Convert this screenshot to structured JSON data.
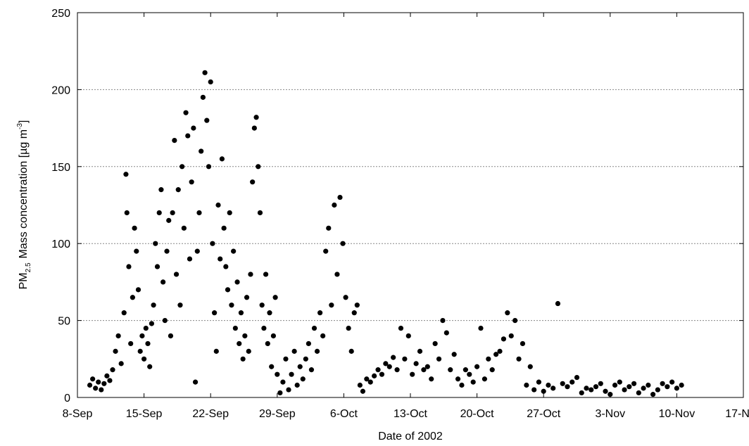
{
  "chart_data": {
    "type": "scatter",
    "xlabel": "Date of 2002",
    "ylabel": {
      "main": "PM",
      "sub": "2.5",
      "text": "Mass concentration [µg m",
      "sup": "-3",
      "end": "]"
    },
    "xlim": [
      0,
      70
    ],
    "xticks": [
      {
        "value": 0,
        "label": "8-Sep"
      },
      {
        "value": 7,
        "label": "15-Sep"
      },
      {
        "value": 14,
        "label": "22-Sep"
      },
      {
        "value": 21,
        "label": "29-Sep"
      },
      {
        "value": 28,
        "label": "6-Oct"
      },
      {
        "value": 35,
        "label": "13-Oct"
      },
      {
        "value": 42,
        "label": "20-Oct"
      },
      {
        "value": 49,
        "label": "27-Oct"
      },
      {
        "value": 56,
        "label": "3-Nov"
      },
      {
        "value": 63,
        "label": "10-Nov"
      },
      {
        "value": 70,
        "label": "17-Nov"
      }
    ],
    "ylim": [
      0,
      250
    ],
    "yticks": [
      0,
      50,
      100,
      150,
      200,
      250
    ],
    "grid": true,
    "color": "#000000",
    "x": [
      1.3,
      1.6,
      1.9,
      2.2,
      2.5,
      2.8,
      3.1,
      3.4,
      3.7,
      4.0,
      4.3,
      4.6,
      4.9,
      5.1,
      5.2,
      5.4,
      5.6,
      5.8,
      6.0,
      6.2,
      6.4,
      6.6,
      6.8,
      7.0,
      7.2,
      7.4,
      7.6,
      7.8,
      8.0,
      8.2,
      8.4,
      8.6,
      8.8,
      9.0,
      9.2,
      9.4,
      9.6,
      9.8,
      10.0,
      10.2,
      10.4,
      10.6,
      10.8,
      11.0,
      11.2,
      11.4,
      11.6,
      11.8,
      12.0,
      12.2,
      12.4,
      12.6,
      12.8,
      13.0,
      13.2,
      13.4,
      13.6,
      13.8,
      14.0,
      14.2,
      14.4,
      14.6,
      14.8,
      15.0,
      15.2,
      15.4,
      15.6,
      15.8,
      16.0,
      16.2,
      16.4,
      16.6,
      16.8,
      17.0,
      17.2,
      17.4,
      17.6,
      17.8,
      18.0,
      18.2,
      18.4,
      18.6,
      18.8,
      19.0,
      19.2,
      19.4,
      19.6,
      19.8,
      20.0,
      20.2,
      20.4,
      20.6,
      20.8,
      21.0,
      21.3,
      21.6,
      21.9,
      22.2,
      22.5,
      22.8,
      23.1,
      23.4,
      23.7,
      24.0,
      24.3,
      24.6,
      24.9,
      25.2,
      25.5,
      25.8,
      26.1,
      26.4,
      26.7,
      27.0,
      27.3,
      27.6,
      27.9,
      28.2,
      28.5,
      28.8,
      29.1,
      29.4,
      29.7,
      30.0,
      30.4,
      30.8,
      31.2,
      31.6,
      32.0,
      32.4,
      32.8,
      33.2,
      33.6,
      34.0,
      34.4,
      34.8,
      35.2,
      35.6,
      36.0,
      36.4,
      36.8,
      37.2,
      37.6,
      38.0,
      38.4,
      38.8,
      39.2,
      39.6,
      40.0,
      40.4,
      40.8,
      41.2,
      41.6,
      42.0,
      42.4,
      42.8,
      43.2,
      43.6,
      44.0,
      44.4,
      44.8,
      45.2,
      45.6,
      46.0,
      46.4,
      46.8,
      47.2,
      47.6,
      48.0,
      48.5,
      49.0,
      49.5,
      50.0,
      50.5,
      51.0,
      51.5,
      52.0,
      52.5,
      53.0,
      53.5,
      54.0,
      54.5,
      55.0,
      55.5,
      56.0,
      56.5,
      57.0,
      57.5,
      58.0,
      58.5,
      59.0,
      59.5,
      60.0,
      60.5,
      61.0,
      61.5,
      62.0,
      62.5,
      63.0,
      63.5
    ],
    "values": [
      8,
      12,
      6,
      10,
      5,
      9,
      14,
      11,
      18,
      30,
      40,
      22,
      55,
      145,
      120,
      85,
      35,
      65,
      110,
      95,
      70,
      30,
      40,
      25,
      45,
      35,
      20,
      48,
      60,
      100,
      85,
      120,
      135,
      75,
      50,
      95,
      115,
      40,
      120,
      167,
      80,
      135,
      60,
      150,
      110,
      185,
      170,
      90,
      140,
      175,
      10,
      95,
      120,
      160,
      195,
      211,
      180,
      150,
      205,
      100,
      55,
      30,
      125,
      90,
      155,
      110,
      85,
      70,
      120,
      60,
      95,
      45,
      75,
      35,
      55,
      25,
      40,
      65,
      30,
      80,
      140,
      175,
      182,
      150,
      120,
      60,
      45,
      80,
      35,
      55,
      20,
      40,
      65,
      15,
      3,
      10,
      25,
      5,
      15,
      30,
      8,
      20,
      12,
      25,
      35,
      18,
      45,
      30,
      55,
      40,
      95,
      110,
      60,
      125,
      80,
      130,
      100,
      65,
      45,
      30,
      55,
      60,
      8,
      4,
      12,
      10,
      14,
      18,
      15,
      22,
      20,
      26,
      18,
      45,
      25,
      40,
      15,
      22,
      30,
      18,
      20,
      12,
      35,
      25,
      50,
      42,
      18,
      28,
      12,
      8,
      18,
      15,
      10,
      20,
      45,
      12,
      25,
      18,
      28,
      30,
      38,
      55,
      40,
      50,
      25,
      35,
      8,
      20,
      5,
      10,
      4,
      8,
      6,
      61,
      9,
      7,
      10,
      13,
      3,
      6,
      5,
      7,
      9,
      4,
      2,
      8,
      10,
      5,
      7,
      9,
      3,
      6,
      8,
      2,
      5,
      9,
      7,
      10,
      6,
      8
    ]
  }
}
